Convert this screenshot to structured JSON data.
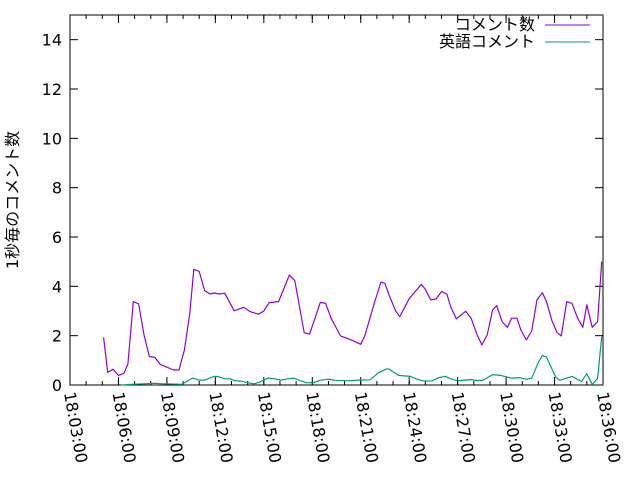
{
  "chart_data": {
    "type": "line",
    "title": "",
    "xlabel": "",
    "ylabel": "1秒毎のコメント数",
    "xlim": [
      "18:03:00",
      "18:36:00"
    ],
    "ylim": [
      0,
      15
    ],
    "x_ticks": [
      "18:03:00",
      "18:06:00",
      "18:09:00",
      "18:12:00",
      "18:15:00",
      "18:18:00",
      "18:21:00",
      "18:24:00",
      "18:27:00",
      "18:30:00",
      "18:33:00",
      "18:36:00"
    ],
    "y_ticks": [
      "0",
      "2",
      "4",
      "6",
      "8",
      "10",
      "12",
      "14"
    ],
    "grid": false,
    "legend_position": "top-right",
    "series": [
      {
        "name": "コメント数",
        "color": "#9400d3",
        "points": [
          [
            "18:05:05",
            1.93
          ],
          [
            "18:05:20",
            0.51
          ],
          [
            "18:05:40",
            0.64
          ],
          [
            "18:06:00",
            0.39
          ],
          [
            "18:06:20",
            0.47
          ],
          [
            "18:06:35",
            0.85
          ],
          [
            "18:06:55",
            3.38
          ],
          [
            "18:07:15",
            3.29
          ],
          [
            "18:07:35",
            2.03
          ],
          [
            "18:07:55",
            1.15
          ],
          [
            "18:08:15",
            1.12
          ],
          [
            "18:08:35",
            0.84
          ],
          [
            "18:09:00",
            0.72
          ],
          [
            "18:09:25",
            0.61
          ],
          [
            "18:09:45",
            0.61
          ],
          [
            "18:10:05",
            1.42
          ],
          [
            "18:10:25",
            2.91
          ],
          [
            "18:10:40",
            4.69
          ],
          [
            "18:11:00",
            4.6
          ],
          [
            "18:11:20",
            3.83
          ],
          [
            "18:11:40",
            3.69
          ],
          [
            "18:11:55",
            3.73
          ],
          [
            "18:12:15",
            3.69
          ],
          [
            "18:12:35",
            3.72
          ],
          [
            "18:13:10",
            3.01
          ],
          [
            "18:13:45",
            3.15
          ],
          [
            "18:14:10",
            2.97
          ],
          [
            "18:14:40",
            2.87
          ],
          [
            "18:15:00",
            3.0
          ],
          [
            "18:15:20",
            3.34
          ],
          [
            "18:15:55",
            3.38
          ],
          [
            "18:16:35",
            4.46
          ],
          [
            "18:16:55",
            4.23
          ],
          [
            "18:17:30",
            2.12
          ],
          [
            "18:17:50",
            2.06
          ],
          [
            "18:18:30",
            3.35
          ],
          [
            "18:18:50",
            3.31
          ],
          [
            "18:19:10",
            2.71
          ],
          [
            "18:19:45",
            1.99
          ],
          [
            "18:20:10",
            1.89
          ],
          [
            "18:20:30",
            1.8
          ],
          [
            "18:21:00",
            1.65
          ],
          [
            "18:21:15",
            1.99
          ],
          [
            "18:21:50",
            3.31
          ],
          [
            "18:22:15",
            4.17
          ],
          [
            "18:22:30",
            4.12
          ],
          [
            "18:22:45",
            3.65
          ],
          [
            "18:23:10",
            3.0
          ],
          [
            "18:23:25",
            2.77
          ],
          [
            "18:24:00",
            3.5
          ],
          [
            "18:24:45",
            4.08
          ],
          [
            "18:25:00",
            3.88
          ],
          [
            "18:25:20",
            3.45
          ],
          [
            "18:25:40",
            3.49
          ],
          [
            "18:26:00",
            3.79
          ],
          [
            "18:26:20",
            3.68
          ],
          [
            "18:26:35",
            3.15
          ],
          [
            "18:26:55",
            2.68
          ],
          [
            "18:27:30",
            2.99
          ],
          [
            "18:27:50",
            2.71
          ],
          [
            "18:28:10",
            2.1
          ],
          [
            "18:28:30",
            1.62
          ],
          [
            "18:28:50",
            2.03
          ],
          [
            "18:29:10",
            3.04
          ],
          [
            "18:29:25",
            3.22
          ],
          [
            "18:29:45",
            2.57
          ],
          [
            "18:30:05",
            2.34
          ],
          [
            "18:30:20",
            2.71
          ],
          [
            "18:30:40",
            2.71
          ],
          [
            "18:30:55",
            2.23
          ],
          [
            "18:31:15",
            1.83
          ],
          [
            "18:31:35",
            2.19
          ],
          [
            "18:31:55",
            3.45
          ],
          [
            "18:32:15",
            3.74
          ],
          [
            "18:32:30",
            3.38
          ],
          [
            "18:32:50",
            2.61
          ],
          [
            "18:33:10",
            2.12
          ],
          [
            "18:33:25",
            1.99
          ],
          [
            "18:33:45",
            3.38
          ],
          [
            "18:34:05",
            3.31
          ],
          [
            "18:34:25",
            2.73
          ],
          [
            "18:34:45",
            2.34
          ],
          [
            "18:35:00",
            3.25
          ],
          [
            "18:35:20",
            2.34
          ],
          [
            "18:35:40",
            2.57
          ],
          [
            "18:35:55",
            5.0
          ]
        ]
      },
      {
        "name": "英語コメント",
        "color": "#009e73",
        "points": [
          [
            "18:06:10",
            0.0
          ],
          [
            "18:06:50",
            0.03
          ],
          [
            "18:08:15",
            0.07
          ],
          [
            "18:08:45",
            0.05
          ],
          [
            "18:09:00",
            0.05
          ],
          [
            "18:09:55",
            0.03
          ],
          [
            "18:10:35",
            0.28
          ],
          [
            "18:11:00",
            0.2
          ],
          [
            "18:11:20",
            0.2
          ],
          [
            "18:11:55",
            0.35
          ],
          [
            "18:12:15",
            0.33
          ],
          [
            "18:12:35",
            0.25
          ],
          [
            "18:12:55",
            0.25
          ],
          [
            "18:13:10",
            0.18
          ],
          [
            "18:13:35",
            0.16
          ],
          [
            "18:14:00",
            0.09
          ],
          [
            "18:14:25",
            0.05
          ],
          [
            "18:14:45",
            0.12
          ],
          [
            "18:15:15",
            0.28
          ],
          [
            "18:15:40",
            0.25
          ],
          [
            "18:16:05",
            0.2
          ],
          [
            "18:16:30",
            0.25
          ],
          [
            "18:16:50",
            0.28
          ],
          [
            "18:17:15",
            0.18
          ],
          [
            "18:17:40",
            0.09
          ],
          [
            "18:18:05",
            0.1
          ],
          [
            "18:18:30",
            0.19
          ],
          [
            "18:19:00",
            0.24
          ],
          [
            "18:19:25",
            0.19
          ],
          [
            "18:20:15",
            0.17
          ],
          [
            "18:20:50",
            0.2
          ],
          [
            "18:21:35",
            0.21
          ],
          [
            "18:22:05",
            0.49
          ],
          [
            "18:22:35",
            0.65
          ],
          [
            "18:22:45",
            0.65
          ],
          [
            "18:23:20",
            0.39
          ],
          [
            "18:24:05",
            0.35
          ],
          [
            "18:24:25",
            0.25
          ],
          [
            "18:24:55",
            0.16
          ],
          [
            "18:25:25",
            0.17
          ],
          [
            "18:25:50",
            0.3
          ],
          [
            "18:26:15",
            0.35
          ],
          [
            "18:26:35",
            0.25
          ],
          [
            "18:27:00",
            0.17
          ],
          [
            "18:27:25",
            0.2
          ],
          [
            "18:27:50",
            0.22
          ],
          [
            "18:28:15",
            0.18
          ],
          [
            "18:28:35",
            0.2
          ],
          [
            "18:29:10",
            0.42
          ],
          [
            "18:29:40",
            0.39
          ],
          [
            "18:30:20",
            0.28
          ],
          [
            "18:30:50",
            0.3
          ],
          [
            "18:31:15",
            0.23
          ],
          [
            "18:31:35",
            0.28
          ],
          [
            "18:32:00",
            0.92
          ],
          [
            "18:32:15",
            1.2
          ],
          [
            "18:32:30",
            1.13
          ],
          [
            "18:33:05",
            0.31
          ],
          [
            "18:33:20",
            0.19
          ],
          [
            "18:34:05",
            0.35
          ],
          [
            "18:34:40",
            0.14
          ],
          [
            "18:35:00",
            0.46
          ],
          [
            "18:35:20",
            0.03
          ],
          [
            "18:35:40",
            0.26
          ],
          [
            "18:35:55",
            1.97
          ]
        ]
      }
    ]
  }
}
